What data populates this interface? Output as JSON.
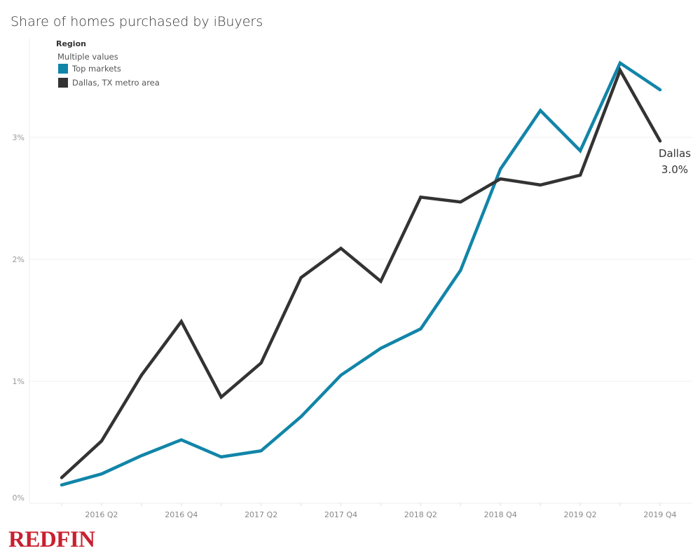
{
  "chart_data": {
    "type": "line",
    "title": "Share of homes purchased by iBuyers",
    "legend": {
      "heading": "Region",
      "subheading": "Multiple values",
      "placement": "top-left"
    },
    "x": [
      "2016 Q1",
      "2016 Q2",
      "2016 Q3",
      "2016 Q4",
      "2017 Q1",
      "2017 Q2",
      "2017 Q3",
      "2017 Q4",
      "2018 Q1",
      "2018 Q2",
      "2018 Q3",
      "2018 Q4",
      "2019 Q1",
      "2019 Q2",
      "2019 Q3",
      "2019 Q4"
    ],
    "x_tick_labels": [
      "2016 Q2",
      "2016 Q4",
      "2017 Q2",
      "2017 Q4",
      "2018 Q2",
      "2018 Q4",
      "2019 Q2",
      "2019 Q4"
    ],
    "y_tick_labels": [
      "0%",
      "1%",
      "2%",
      "3%"
    ],
    "y_ticks": [
      0,
      1,
      2,
      3
    ],
    "ylim": [
      0,
      3.9
    ],
    "grid": "horizontal",
    "series": [
      {
        "name": "Top markets",
        "color": "#1185a8",
        "values": [
          0.15,
          0.24,
          0.39,
          0.52,
          0.38,
          0.43,
          0.71,
          1.05,
          1.27,
          1.43,
          1.91,
          2.74,
          3.22,
          2.89,
          3.61,
          3.39
        ]
      },
      {
        "name": "Dallas, TX metro area",
        "color": "#333333",
        "values": [
          0.21,
          0.51,
          1.05,
          1.49,
          0.87,
          1.15,
          1.85,
          2.09,
          1.82,
          2.51,
          2.47,
          2.66,
          2.61,
          2.69,
          3.55,
          2.97
        ]
      }
    ],
    "annotation": {
      "label": "Dallas",
      "value": "3.0%"
    }
  },
  "brand": {
    "logo_text": "REDFIN",
    "color": "#c8202f"
  }
}
